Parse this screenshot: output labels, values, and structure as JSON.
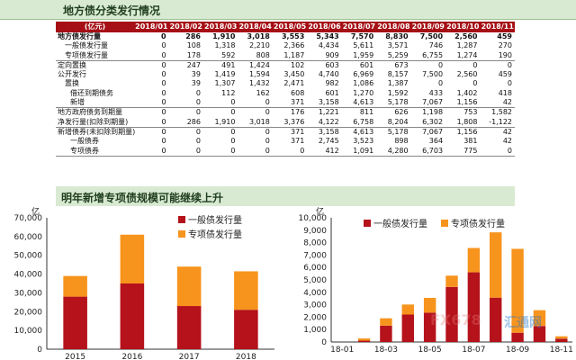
{
  "header": {
    "title": "地方债分类发行情况"
  },
  "table": {
    "unit_label": "(亿元)",
    "columns": [
      "2018/01",
      "2018/02",
      "2018/03",
      "2018/04",
      "2018/05",
      "2018/06",
      "2018/07",
      "2018/08",
      "2018/09",
      "2018/10",
      "2018/11"
    ],
    "rows": [
      {
        "label": "地方债发行量",
        "indent": 0,
        "bold": true,
        "values": [
          "0",
          "286",
          "1,910",
          "3,018",
          "3,553",
          "5,343",
          "7,570",
          "8,830",
          "7,500",
          "2,560",
          "459"
        ]
      },
      {
        "label": "一般债发行量",
        "indent": 1,
        "values": [
          "0",
          "108",
          "1,318",
          "2,210",
          "2,366",
          "4,434",
          "5,611",
          "3,571",
          "746",
          "1,287",
          "270"
        ]
      },
      {
        "label": "专项债发行量",
        "indent": 1,
        "values": [
          "0",
          "178",
          "592",
          "808",
          "1,187",
          "909",
          "1,959",
          "5,259",
          "6,755",
          "1,274",
          "190"
        ]
      },
      {
        "label": "定向置换",
        "indent": 0,
        "sep": true,
        "values": [
          "0",
          "247",
          "491",
          "1,424",
          "102",
          "603",
          "601",
          "673",
          "0",
          "0",
          "0"
        ]
      },
      {
        "label": "公开发行",
        "indent": 0,
        "values": [
          "0",
          "39",
          "1,419",
          "1,594",
          "3,450",
          "4,740",
          "6,969",
          "8,157",
          "7,500",
          "2,560",
          "459"
        ]
      },
      {
        "label": "置换",
        "indent": 1,
        "values": [
          "0",
          "39",
          "1,307",
          "1,432",
          "2,471",
          "982",
          "1,086",
          "1,387",
          "0",
          "0",
          "0"
        ]
      },
      {
        "label": "借还到期债务",
        "indent": 2,
        "values": [
          "0",
          "0",
          "112",
          "162",
          "608",
          "601",
          "1,270",
          "1,592",
          "433",
          "1,402",
          "418"
        ]
      },
      {
        "label": "新增",
        "indent": 2,
        "values": [
          "0",
          "0",
          "0",
          "0",
          "371",
          "3,158",
          "4,613",
          "5,178",
          "7,067",
          "1,156",
          "42"
        ]
      },
      {
        "label": "地方政府债务到期量",
        "indent": 0,
        "sep": true,
        "values": [
          "0",
          "0",
          "0",
          "0",
          "176",
          "1,221",
          "811",
          "626",
          "1,198",
          "753",
          "1,582"
        ]
      },
      {
        "label": "净发行量(扣除到期量)",
        "indent": 0,
        "values": [
          "0",
          "286",
          "1,910",
          "3,018",
          "3,376",
          "4,122",
          "6,758",
          "8,204",
          "6,302",
          "1,808",
          "-1,122"
        ]
      },
      {
        "label": "新增债券(未扣除到期量)",
        "indent": 0,
        "sep": true,
        "values": [
          "0",
          "0",
          "0",
          "0",
          "371",
          "3,158",
          "4,613",
          "5,178",
          "7,067",
          "1,156",
          "42"
        ]
      },
      {
        "label": "一般债券",
        "indent": 2,
        "values": [
          "0",
          "0",
          "0",
          "0",
          "371",
          "2,745",
          "3,523",
          "898",
          "364",
          "381",
          "42"
        ]
      },
      {
        "label": "专项债券",
        "indent": 2,
        "last": true,
        "values": [
          "0",
          "0",
          "0",
          "0",
          "0",
          "412",
          "1,091",
          "4,280",
          "6,703",
          "775",
          "0"
        ]
      }
    ]
  },
  "section_title": "明年新增专项债规模可能继续上升",
  "colors": {
    "general": "#b5121b",
    "special": "#f7941d",
    "header_red": "#a50f15",
    "title_bg": "#d9ead3"
  },
  "chart_data": [
    {
      "type": "bar",
      "stacked": true,
      "unit": "亿",
      "categories": [
        "2015",
        "2016",
        "2017",
        "2018"
      ],
      "series": [
        {
          "name": "一般债发行量",
          "values": [
            28000,
            35000,
            23000,
            21000
          ]
        },
        {
          "name": "专项债发行量",
          "values": [
            11000,
            26000,
            21000,
            20500
          ]
        }
      ],
      "ylim": [
        0,
        70000
      ],
      "yticks": [
        "0",
        "10,000",
        "20,000",
        "30,000",
        "40,000",
        "50,000",
        "60,000",
        "70,000"
      ],
      "legend": "top-right"
    },
    {
      "type": "bar",
      "stacked": true,
      "unit": "亿",
      "categories": [
        "18-01",
        "18-02",
        "18-03",
        "18-04",
        "18-05",
        "18-06",
        "18-07",
        "18-08",
        "18-09",
        "18-10",
        "18-11"
      ],
      "xtick_labels": [
        "18-01",
        "18-03",
        "18-05",
        "18-07",
        "18-09",
        "18-11"
      ],
      "series": [
        {
          "name": "一般债发行量",
          "values": [
            0,
            108,
            1318,
            2210,
            2366,
            4434,
            5611,
            3571,
            746,
            1287,
            270
          ]
        },
        {
          "name": "专项债发行量",
          "values": [
            0,
            178,
            592,
            808,
            1187,
            909,
            1959,
            5259,
            6755,
            1274,
            190
          ]
        }
      ],
      "ylim": [
        0,
        10000
      ],
      "yticks": [
        "0",
        "1,000",
        "2,000",
        "3,000",
        "4,000",
        "5,000",
        "6,000",
        "7,000",
        "8,000",
        "9,000",
        "10,000"
      ],
      "legend": "top"
    }
  ],
  "watermark": {
    "text": "FX678",
    "text2": "汇通网"
  }
}
